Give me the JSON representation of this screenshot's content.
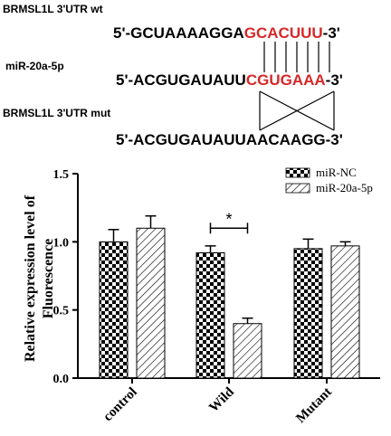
{
  "schematic": {
    "wt_label": "BRMSL1L  3'UTR wt",
    "wt_prefix": "5'-GCUAAAAGGA",
    "wt_seed": "GCACUUU",
    "wt_suffix": "-3'",
    "mir_label": "miR-20a-5p",
    "mir_prefix": "5'-ACGUGAUAUU",
    "mir_seed": "CGUGAAA",
    "mir_suffix": "-3'",
    "mut_label": "BRMSL1L  3'UTR mut",
    "mut_seq": "5'-ACGUGAUAUUAACAAGG-3'",
    "seed_color": "#d62828"
  },
  "chart_data": {
    "type": "bar",
    "categories": [
      "control",
      "Wild",
      "Mutant"
    ],
    "series": [
      {
        "name": "miR-NC",
        "values": [
          1.0,
          0.92,
          0.95
        ],
        "errors": [
          0.09,
          0.05,
          0.07
        ],
        "pattern": "checker"
      },
      {
        "name": "miR-20a-5p",
        "values": [
          1.1,
          0.4,
          0.97
        ],
        "errors": [
          0.09,
          0.04,
          0.03
        ],
        "pattern": "hatch"
      }
    ],
    "ylabel": "Relative expression level of Fluorescence",
    "ylim": [
      0,
      1.5
    ],
    "yticks": [
      "0.0",
      "0.5",
      "1.0",
      "1.5"
    ],
    "significance": [
      {
        "category": "Wild",
        "label": "*"
      }
    ],
    "legend_position": "top-right"
  }
}
